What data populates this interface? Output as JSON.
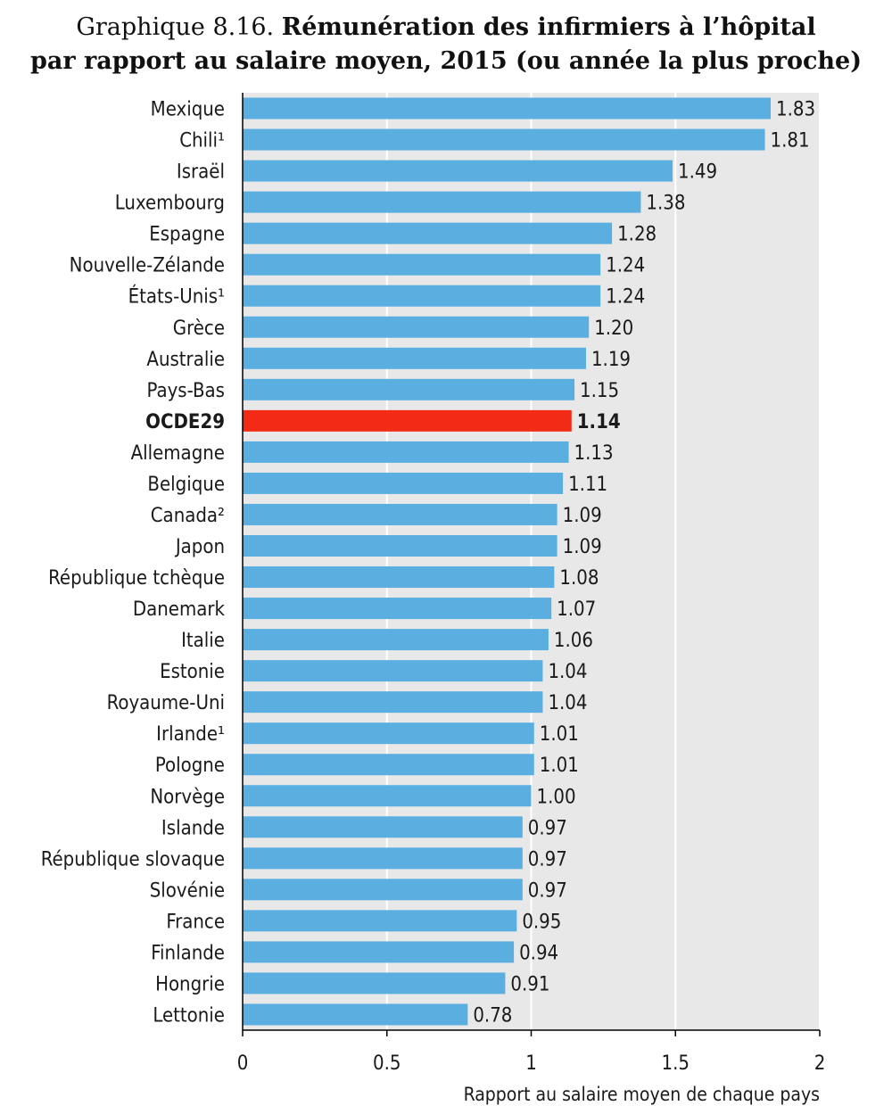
{
  "figure": {
    "number": "Graphique 8.16.",
    "title_line1": "Rémunération des infirmiers à l’hôpital",
    "title_line2": "par rapport au salaire moyen, 2015 (ou année la plus proche)"
  },
  "chart_data": {
    "type": "bar",
    "orientation": "horizontal",
    "title": "Rémunération des infirmiers à l’hôpital par rapport au salaire moyen, 2015 (ou année la plus proche)",
    "categories": [
      "Mexique",
      "Chili¹",
      "Israël",
      "Luxembourg",
      "Espagne",
      "Nouvelle-Zélande",
      "États-Unis¹",
      "Grèce",
      "Australie",
      "Pays-Bas",
      "OCDE29",
      "Allemagne",
      "Belgique",
      "Canada²",
      "Japon",
      "République tchèque",
      "Danemark",
      "Italie",
      "Estonie",
      "Royaume-Uni",
      "Irlande¹",
      "Pologne",
      "Norvège",
      "Islande",
      "République slovaque",
      "Slovénie",
      "France",
      "Finlande",
      "Hongrie",
      "Lettonie"
    ],
    "values": [
      1.83,
      1.81,
      1.49,
      1.38,
      1.28,
      1.24,
      1.24,
      1.2,
      1.19,
      1.15,
      1.14,
      1.13,
      1.11,
      1.09,
      1.09,
      1.08,
      1.07,
      1.06,
      1.04,
      1.04,
      1.01,
      1.01,
      1.0,
      0.97,
      0.97,
      0.97,
      0.95,
      0.94,
      0.91,
      0.78
    ],
    "value_labels": [
      "1.83",
      "1.81",
      "1.49",
      "1.38",
      "1.28",
      "1.24",
      "1.24",
      "1.20",
      "1.19",
      "1.15",
      "1.14",
      "1.13",
      "1.11",
      "1.09",
      "1.09",
      "1.08",
      "1.07",
      "1.06",
      "1.04",
      "1.04",
      "1.01",
      "1.01",
      "1.00",
      "0.97",
      "0.97",
      "0.97",
      "0.95",
      "0.94",
      "0.91",
      "0.78"
    ],
    "highlight": "OCDE29",
    "xlim": [
      0,
      2
    ],
    "xticks": [
      0,
      0.5,
      1,
      1.5,
      2
    ],
    "xtick_labels": [
      "0",
      "0.5",
      "1",
      "1.5",
      "2"
    ],
    "xlabel": "Rapport au salaire moyen de chaque pays",
    "ylabel": "",
    "grid": true,
    "colors": {
      "bar": "#5aafe0",
      "highlight": "#f32b16",
      "background": "#e8e8e8",
      "grid": "#ffffff",
      "text": "#1a1a1a"
    }
  }
}
